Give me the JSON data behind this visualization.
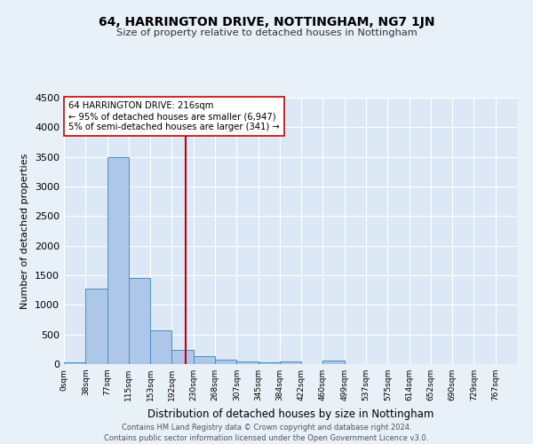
{
  "title": "64, HARRINGTON DRIVE, NOTTINGHAM, NG7 1JN",
  "subtitle": "Size of property relative to detached houses in Nottingham",
  "xlabel": "Distribution of detached houses by size in Nottingham",
  "ylabel": "Number of detached properties",
  "footer_line1": "Contains HM Land Registry data © Crown copyright and database right 2024.",
  "footer_line2": "Contains public sector information licensed under the Open Government Licence v3.0.",
  "bin_labels": [
    "0sqm",
    "38sqm",
    "77sqm",
    "115sqm",
    "153sqm",
    "192sqm",
    "230sqm",
    "268sqm",
    "307sqm",
    "345sqm",
    "384sqm",
    "422sqm",
    "460sqm",
    "499sqm",
    "537sqm",
    "575sqm",
    "614sqm",
    "652sqm",
    "690sqm",
    "729sqm",
    "767sqm"
  ],
  "bar_values": [
    30,
    1280,
    3500,
    1460,
    575,
    245,
    130,
    80,
    40,
    30,
    50,
    0,
    60,
    0,
    0,
    0,
    0,
    0,
    0,
    0,
    0
  ],
  "bar_color": "#aec6e8",
  "bar_edge_color": "#4a90c4",
  "vline_sqm": 216,
  "bin_starts": [
    0,
    38,
    77,
    115,
    153,
    192,
    230,
    268,
    307,
    345,
    384,
    422,
    460,
    499,
    537,
    575,
    614,
    652,
    690,
    729,
    767
  ],
  "vline_color": "#cc0000",
  "ylim": [
    0,
    4500
  ],
  "yticks": [
    0,
    500,
    1000,
    1500,
    2000,
    2500,
    3000,
    3500,
    4000,
    4500
  ],
  "annotation_text": "64 HARRINGTON DRIVE: 216sqm\n← 95% of detached houses are smaller (6,947)\n5% of semi-detached houses are larger (341) →",
  "annotation_box_color": "#ffffff",
  "annotation_box_edge": "#cc0000",
  "background_color": "#e8f0f8",
  "plot_bg_color": "#dce8f5"
}
